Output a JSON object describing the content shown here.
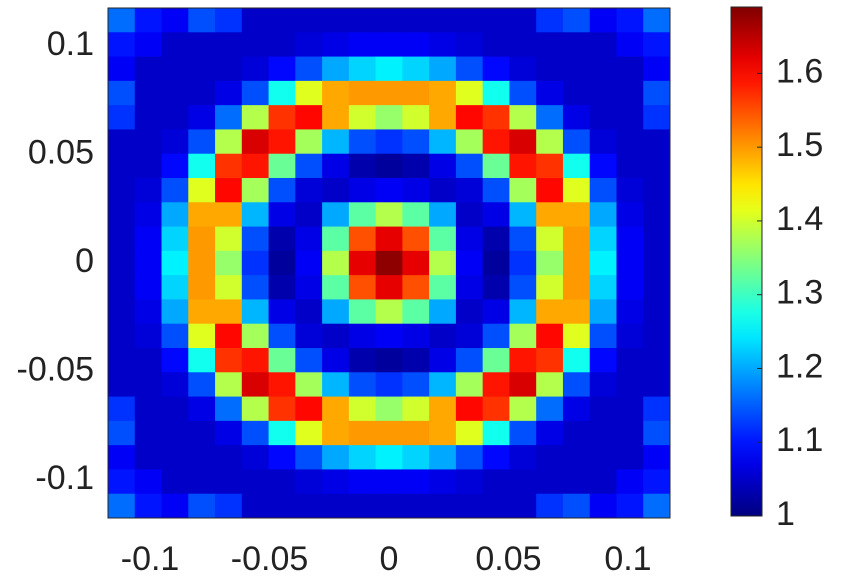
{
  "chart_data": {
    "type": "heatmap",
    "colormap": "jet",
    "x": [
      -0.112,
      -0.1008,
      -0.0896,
      -0.0784,
      -0.0672,
      -0.056,
      -0.0448,
      -0.0336,
      -0.0224,
      -0.0112,
      0,
      0.0112,
      0.0224,
      0.0336,
      0.0448,
      0.056,
      0.0672,
      0.0784,
      0.0896,
      0.1008,
      0.112
    ],
    "y": [
      0.112,
      0.1008,
      0.0896,
      0.0784,
      0.0672,
      0.056,
      0.0448,
      0.0336,
      0.0224,
      0.0112,
      0,
      -0.0112,
      -0.0224,
      -0.0336,
      -0.0448,
      -0.056,
      -0.0672,
      -0.0784,
      -0.0896,
      -0.1008,
      -0.112
    ],
    "z": [
      [
        1.16,
        1.1,
        1.08,
        1.14,
        1.12,
        1.05,
        1.05,
        1.05,
        1.05,
        1.05,
        1.05,
        1.05,
        1.05,
        1.05,
        1.05,
        1.05,
        1.12,
        1.14,
        1.08,
        1.1,
        1.16
      ],
      [
        1.1,
        1.08,
        1.05,
        1.05,
        1.05,
        1.05,
        1.05,
        1.06,
        1.07,
        1.08,
        1.08,
        1.08,
        1.07,
        1.06,
        1.05,
        1.05,
        1.05,
        1.05,
        1.05,
        1.08,
        1.1
      ],
      [
        1.08,
        1.05,
        1.05,
        1.05,
        1.05,
        1.06,
        1.09,
        1.14,
        1.2,
        1.23,
        1.25,
        1.23,
        1.2,
        1.14,
        1.09,
        1.06,
        1.05,
        1.05,
        1.05,
        1.05,
        1.08
      ],
      [
        1.14,
        1.05,
        1.05,
        1.05,
        1.07,
        1.14,
        1.27,
        1.41,
        1.49,
        1.5,
        1.5,
        1.5,
        1.49,
        1.41,
        1.27,
        1.14,
        1.07,
        1.05,
        1.05,
        1.05,
        1.14
      ],
      [
        1.12,
        1.05,
        1.05,
        1.07,
        1.16,
        1.38,
        1.57,
        1.6,
        1.49,
        1.4,
        1.36,
        1.4,
        1.49,
        1.6,
        1.57,
        1.38,
        1.16,
        1.07,
        1.05,
        1.05,
        1.12
      ],
      [
        1.05,
        1.05,
        1.06,
        1.14,
        1.38,
        1.63,
        1.59,
        1.37,
        1.21,
        1.14,
        1.12,
        1.14,
        1.21,
        1.37,
        1.59,
        1.63,
        1.38,
        1.14,
        1.06,
        1.05,
        1.05
      ],
      [
        1.05,
        1.05,
        1.09,
        1.27,
        1.57,
        1.59,
        1.33,
        1.14,
        1.07,
        1.03,
        1.02,
        1.03,
        1.07,
        1.14,
        1.33,
        1.59,
        1.57,
        1.27,
        1.09,
        1.05,
        1.05
      ],
      [
        1.05,
        1.06,
        1.14,
        1.41,
        1.6,
        1.37,
        1.14,
        1.06,
        1.05,
        1.07,
        1.08,
        1.07,
        1.05,
        1.06,
        1.14,
        1.37,
        1.6,
        1.41,
        1.14,
        1.06,
        1.05
      ],
      [
        1.05,
        1.07,
        1.2,
        1.49,
        1.49,
        1.21,
        1.07,
        1.05,
        1.2,
        1.32,
        1.38,
        1.32,
        1.2,
        1.05,
        1.07,
        1.21,
        1.49,
        1.49,
        1.2,
        1.07,
        1.05
      ],
      [
        1.05,
        1.08,
        1.23,
        1.5,
        1.4,
        1.14,
        1.03,
        1.07,
        1.32,
        1.55,
        1.62,
        1.55,
        1.32,
        1.07,
        1.03,
        1.14,
        1.4,
        1.5,
        1.23,
        1.08,
        1.05
      ],
      [
        1.05,
        1.08,
        1.25,
        1.5,
        1.36,
        1.12,
        1.02,
        1.08,
        1.38,
        1.62,
        1.68,
        1.62,
        1.38,
        1.08,
        1.02,
        1.12,
        1.36,
        1.5,
        1.25,
        1.08,
        1.05
      ],
      [
        1.05,
        1.08,
        1.23,
        1.5,
        1.4,
        1.14,
        1.03,
        1.07,
        1.32,
        1.55,
        1.62,
        1.55,
        1.32,
        1.07,
        1.03,
        1.14,
        1.4,
        1.5,
        1.23,
        1.08,
        1.05
      ],
      [
        1.05,
        1.07,
        1.2,
        1.49,
        1.49,
        1.21,
        1.07,
        1.05,
        1.2,
        1.32,
        1.38,
        1.32,
        1.2,
        1.05,
        1.07,
        1.21,
        1.49,
        1.49,
        1.2,
        1.07,
        1.05
      ],
      [
        1.05,
        1.06,
        1.14,
        1.41,
        1.6,
        1.37,
        1.14,
        1.06,
        1.05,
        1.07,
        1.08,
        1.07,
        1.05,
        1.06,
        1.14,
        1.37,
        1.6,
        1.41,
        1.14,
        1.06,
        1.05
      ],
      [
        1.05,
        1.05,
        1.09,
        1.27,
        1.57,
        1.59,
        1.33,
        1.14,
        1.07,
        1.03,
        1.02,
        1.03,
        1.07,
        1.14,
        1.33,
        1.59,
        1.57,
        1.27,
        1.09,
        1.05,
        1.05
      ],
      [
        1.05,
        1.05,
        1.06,
        1.14,
        1.38,
        1.63,
        1.59,
        1.37,
        1.21,
        1.14,
        1.12,
        1.14,
        1.21,
        1.37,
        1.59,
        1.63,
        1.38,
        1.14,
        1.06,
        1.05,
        1.05
      ],
      [
        1.12,
        1.05,
        1.05,
        1.07,
        1.16,
        1.38,
        1.57,
        1.6,
        1.49,
        1.4,
        1.36,
        1.4,
        1.49,
        1.6,
        1.57,
        1.38,
        1.16,
        1.07,
        1.05,
        1.05,
        1.12
      ],
      [
        1.14,
        1.05,
        1.05,
        1.05,
        1.07,
        1.14,
        1.27,
        1.41,
        1.49,
        1.5,
        1.5,
        1.5,
        1.49,
        1.41,
        1.27,
        1.14,
        1.07,
        1.05,
        1.05,
        1.05,
        1.14
      ],
      [
        1.08,
        1.05,
        1.05,
        1.05,
        1.05,
        1.06,
        1.09,
        1.14,
        1.2,
        1.23,
        1.25,
        1.23,
        1.2,
        1.14,
        1.09,
        1.06,
        1.05,
        1.05,
        1.05,
        1.05,
        1.08
      ],
      [
        1.1,
        1.08,
        1.05,
        1.05,
        1.05,
        1.05,
        1.05,
        1.06,
        1.07,
        1.08,
        1.08,
        1.08,
        1.07,
        1.06,
        1.05,
        1.05,
        1.05,
        1.05,
        1.05,
        1.08,
        1.1
      ],
      [
        1.16,
        1.1,
        1.08,
        1.14,
        1.12,
        1.05,
        1.05,
        1.05,
        1.05,
        1.05,
        1.05,
        1.05,
        1.05,
        1.05,
        1.05,
        1.05,
        1.12,
        1.14,
        1.08,
        1.1,
        1.16
      ]
    ],
    "xlim": [
      -0.1176,
      0.1176
    ],
    "ylim": [
      -0.1176,
      0.1176
    ],
    "xticks": [
      -0.1,
      -0.05,
      0,
      0.05,
      0.1
    ],
    "yticks": [
      -0.1,
      -0.05,
      0,
      0.05,
      0.1
    ],
    "clim": [
      1,
      1.69
    ],
    "cticks": [
      1,
      1.1,
      1.2,
      1.3,
      1.4,
      1.5,
      1.6
    ]
  }
}
